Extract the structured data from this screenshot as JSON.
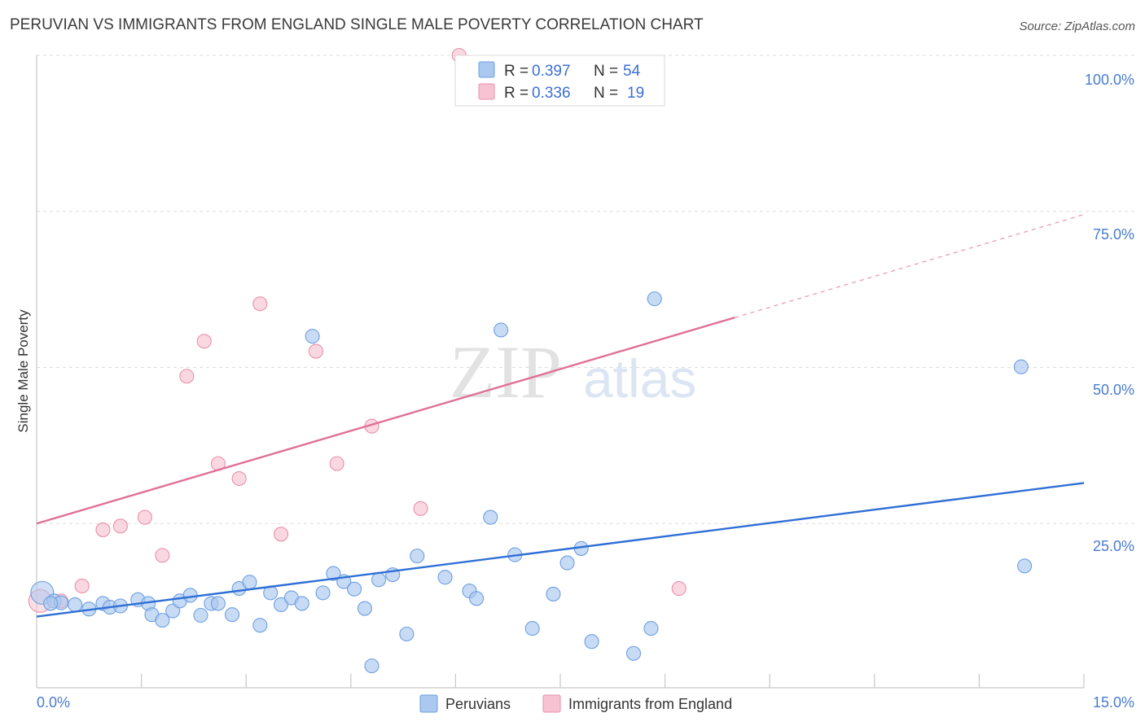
{
  "header": {
    "title": "PERUVIAN VS IMMIGRANTS FROM ENGLAND SINGLE MALE POVERTY CORRELATION CHART",
    "source": "Source: ZipAtlas.com"
  },
  "watermark": {
    "zip": "ZIP",
    "atlas": "atlas"
  },
  "colors": {
    "blue_fill": "#aac8f0",
    "blue_stroke": "#6d9fe0",
    "blue_line": "#2f6fd6",
    "pink_fill": "#f7c3d2",
    "pink_stroke": "#ea8fab",
    "pink_line": "#e07097",
    "tick_text": "#4a7bd0",
    "grid": "#dcdcdc"
  },
  "legend": {
    "rows": [
      {
        "r_label": "R = ",
        "r_value": "0.397",
        "n_label": "N = ",
        "n_value": "54"
      },
      {
        "r_label": "R = ",
        "r_value": "0.336",
        "n_label": "N = ",
        "n_value": "19"
      }
    ]
  },
  "chart_data": {
    "type": "scatter",
    "title": "PERUVIAN VS IMMIGRANTS FROM ENGLAND SINGLE MALE POVERTY CORRELATION CHART",
    "xlabel": "",
    "ylabel": "Single Male Poverty",
    "xlim": [
      0,
      15
    ],
    "ylim": [
      0,
      100
    ],
    "x_tick_labels": [
      "0.0%",
      "15.0%"
    ],
    "y_ticks": [
      25,
      50,
      75,
      100
    ],
    "y_tick_labels": [
      "25.0%",
      "50.0%",
      "75.0%",
      "100.0%"
    ],
    "grid": true,
    "series": [
      {
        "name": "Peruvians",
        "r": 0.397,
        "n": 54,
        "trend": {
          "x_start": 0,
          "y_start": 10.1,
          "x_end": 15,
          "y_end": 31.5,
          "solid_until_x": 15
        },
        "points": [
          {
            "x": 0.08,
            "y": 13.9
          },
          {
            "x": 0.25,
            "y": 12.6
          },
          {
            "x": 0.35,
            "y": 12.3
          },
          {
            "x": 0.55,
            "y": 12.0
          },
          {
            "x": 0.75,
            "y": 11.3
          },
          {
            "x": 0.95,
            "y": 12.2
          },
          {
            "x": 1.05,
            "y": 11.6
          },
          {
            "x": 1.2,
            "y": 11.8
          },
          {
            "x": 1.45,
            "y": 12.8
          },
          {
            "x": 1.6,
            "y": 12.2
          },
          {
            "x": 1.65,
            "y": 10.4
          },
          {
            "x": 1.8,
            "y": 9.5
          },
          {
            "x": 1.95,
            "y": 11.0
          },
          {
            "x": 2.05,
            "y": 12.6
          },
          {
            "x": 2.2,
            "y": 13.5
          },
          {
            "x": 2.35,
            "y": 10.3
          },
          {
            "x": 2.5,
            "y": 12.2
          },
          {
            "x": 2.6,
            "y": 12.2
          },
          {
            "x": 2.8,
            "y": 10.4
          },
          {
            "x": 2.9,
            "y": 14.6
          },
          {
            "x": 3.05,
            "y": 15.6
          },
          {
            "x": 3.2,
            "y": 8.7
          },
          {
            "x": 3.35,
            "y": 13.9
          },
          {
            "x": 3.5,
            "y": 12.0
          },
          {
            "x": 3.65,
            "y": 13.1
          },
          {
            "x": 3.8,
            "y": 12.2
          },
          {
            "x": 3.95,
            "y": 55.0
          },
          {
            "x": 4.1,
            "y": 13.9
          },
          {
            "x": 4.25,
            "y": 17.0
          },
          {
            "x": 4.4,
            "y": 15.7
          },
          {
            "x": 4.55,
            "y": 14.5
          },
          {
            "x": 4.7,
            "y": 11.4
          },
          {
            "x": 4.8,
            "y": 2.2
          },
          {
            "x": 4.9,
            "y": 16.0
          },
          {
            "x": 5.1,
            "y": 16.8
          },
          {
            "x": 5.3,
            "y": 7.3
          },
          {
            "x": 5.45,
            "y": 19.8
          },
          {
            "x": 5.85,
            "y": 16.4
          },
          {
            "x": 6.2,
            "y": 14.2
          },
          {
            "x": 6.3,
            "y": 13.0
          },
          {
            "x": 6.5,
            "y": 26.0
          },
          {
            "x": 6.65,
            "y": 56.0
          },
          {
            "x": 6.85,
            "y": 20.0
          },
          {
            "x": 7.1,
            "y": 8.2
          },
          {
            "x": 7.4,
            "y": 13.7
          },
          {
            "x": 7.6,
            "y": 18.7
          },
          {
            "x": 7.8,
            "y": 21.0
          },
          {
            "x": 7.95,
            "y": 6.1
          },
          {
            "x": 8.55,
            "y": 4.2
          },
          {
            "x": 8.8,
            "y": 8.2
          },
          {
            "x": 8.85,
            "y": 61.0
          },
          {
            "x": 14.1,
            "y": 50.1
          },
          {
            "x": 14.15,
            "y": 18.2
          },
          {
            "x": 0.2,
            "y": 12.2
          }
        ]
      },
      {
        "name": "Immigrants from England",
        "r": 0.336,
        "n": 19,
        "trend": {
          "x_start": 0,
          "y_start": 25.0,
          "x_end": 15,
          "y_end": 74.5,
          "solid_until_x": 10.0
        },
        "points": [
          {
            "x": 0.05,
            "y": 12.6
          },
          {
            "x": 0.35,
            "y": 12.6
          },
          {
            "x": 0.65,
            "y": 15.0
          },
          {
            "x": 0.95,
            "y": 24.0
          },
          {
            "x": 1.2,
            "y": 24.6
          },
          {
            "x": 1.55,
            "y": 26.0
          },
          {
            "x": 1.8,
            "y": 19.9
          },
          {
            "x": 2.15,
            "y": 48.6
          },
          {
            "x": 2.4,
            "y": 54.2
          },
          {
            "x": 2.6,
            "y": 34.6
          },
          {
            "x": 2.9,
            "y": 32.2
          },
          {
            "x": 3.2,
            "y": 60.2
          },
          {
            "x": 3.5,
            "y": 23.3
          },
          {
            "x": 4.0,
            "y": 52.6
          },
          {
            "x": 4.3,
            "y": 34.6
          },
          {
            "x": 4.8,
            "y": 40.6
          },
          {
            "x": 5.5,
            "y": 27.4
          },
          {
            "x": 6.05,
            "y": 100.0
          },
          {
            "x": 9.2,
            "y": 14.6
          }
        ]
      }
    ]
  }
}
